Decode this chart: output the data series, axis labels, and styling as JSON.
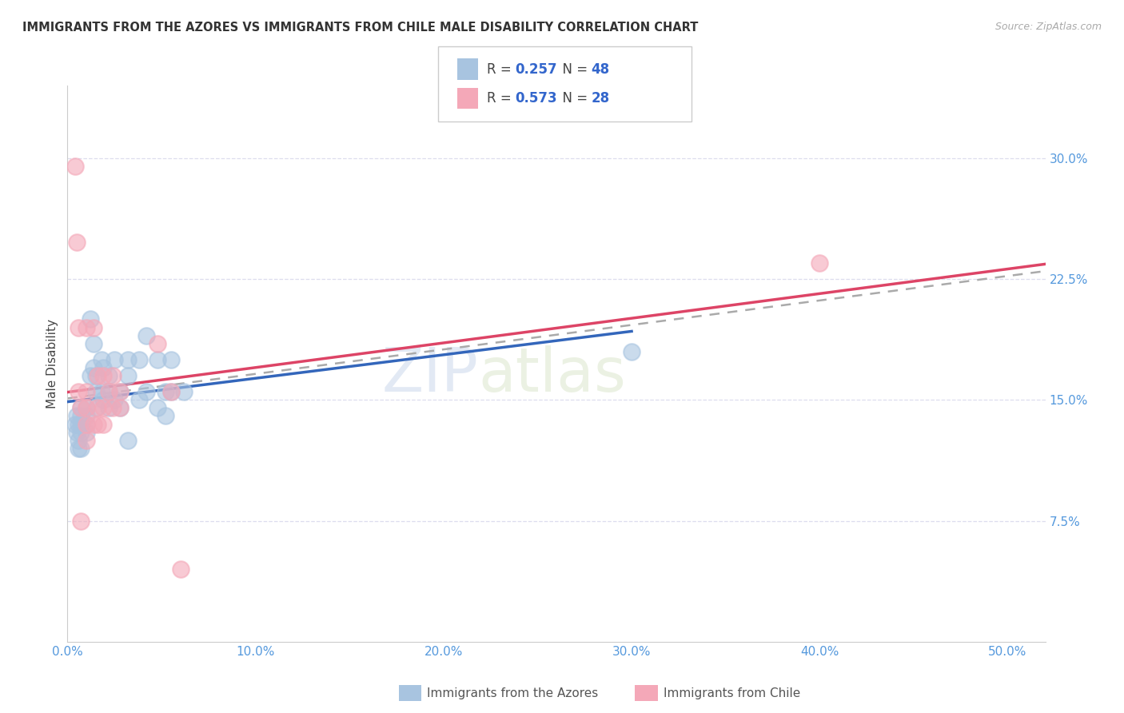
{
  "title": "IMMIGRANTS FROM THE AZORES VS IMMIGRANTS FROM CHILE MALE DISABILITY CORRELATION CHART",
  "source": "Source: ZipAtlas.com",
  "ylabel": "Male Disability",
  "xlim": [
    0.0,
    0.52
  ],
  "ylim": [
    0.0,
    0.345
  ],
  "x_ticks": [
    0.0,
    0.1,
    0.2,
    0.3,
    0.4,
    0.5
  ],
  "x_tick_labels": [
    "0.0%",
    "10.0%",
    "20.0%",
    "30.0%",
    "40.0%",
    "50.0%"
  ],
  "y_ticks": [
    0.075,
    0.15,
    0.225,
    0.3
  ],
  "y_tick_labels": [
    "7.5%",
    "15.0%",
    "22.5%",
    "30.0%"
  ],
  "azores_color": "#a8c4e0",
  "chile_color": "#f4a8b8",
  "azores_line_color": "#3366bb",
  "chile_line_color": "#dd4466",
  "dashed_line_color": "#aaaaaa",
  "tick_color": "#5599dd",
  "grid_color": "#ddddee",
  "legend_label_azores": "Immigrants from the Azores",
  "legend_label_chile": "Immigrants from Chile",
  "azores_R": "0.257",
  "azores_N": "48",
  "chile_R": "0.573",
  "chile_N": "28",
  "watermark_zip": "ZIP",
  "watermark_atlas": "atlas",
  "azores_x": [
    0.004,
    0.005,
    0.005,
    0.006,
    0.006,
    0.006,
    0.007,
    0.007,
    0.007,
    0.007,
    0.007,
    0.01,
    0.01,
    0.01,
    0.01,
    0.012,
    0.012,
    0.014,
    0.014,
    0.015,
    0.015,
    0.015,
    0.018,
    0.018,
    0.019,
    0.019,
    0.022,
    0.022,
    0.022,
    0.025,
    0.025,
    0.028,
    0.028,
    0.032,
    0.032,
    0.032,
    0.038,
    0.038,
    0.042,
    0.042,
    0.048,
    0.048,
    0.052,
    0.052,
    0.055,
    0.055,
    0.062,
    0.3
  ],
  "azores_y": [
    0.135,
    0.14,
    0.13,
    0.135,
    0.125,
    0.12,
    0.145,
    0.14,
    0.135,
    0.13,
    0.12,
    0.145,
    0.14,
    0.135,
    0.13,
    0.2,
    0.165,
    0.185,
    0.17,
    0.155,
    0.165,
    0.145,
    0.175,
    0.155,
    0.17,
    0.15,
    0.165,
    0.155,
    0.145,
    0.175,
    0.15,
    0.155,
    0.145,
    0.175,
    0.165,
    0.125,
    0.175,
    0.15,
    0.19,
    0.155,
    0.175,
    0.145,
    0.155,
    0.14,
    0.175,
    0.155,
    0.155,
    0.18
  ],
  "chile_x": [
    0.004,
    0.005,
    0.006,
    0.006,
    0.007,
    0.007,
    0.01,
    0.01,
    0.01,
    0.01,
    0.01,
    0.014,
    0.014,
    0.016,
    0.016,
    0.016,
    0.019,
    0.019,
    0.019,
    0.022,
    0.024,
    0.024,
    0.028,
    0.028,
    0.048,
    0.055,
    0.06,
    0.4
  ],
  "chile_y": [
    0.295,
    0.248,
    0.195,
    0.155,
    0.145,
    0.075,
    0.195,
    0.155,
    0.145,
    0.135,
    0.125,
    0.195,
    0.135,
    0.165,
    0.145,
    0.135,
    0.165,
    0.145,
    0.135,
    0.155,
    0.165,
    0.145,
    0.155,
    0.145,
    0.185,
    0.155,
    0.045,
    0.235
  ]
}
